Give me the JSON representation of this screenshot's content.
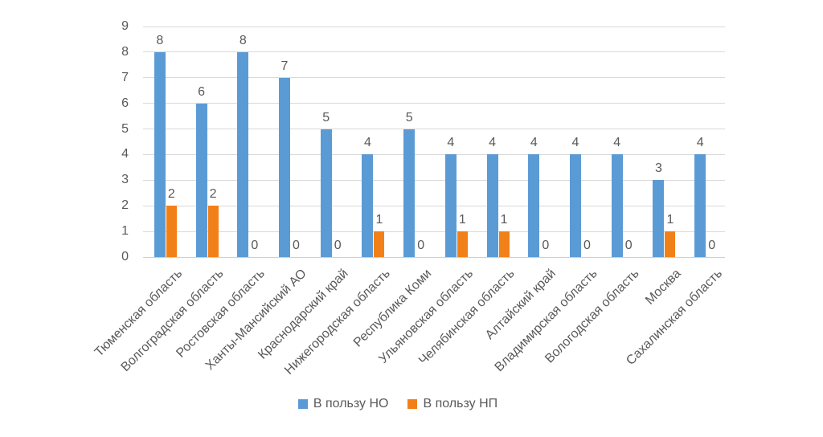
{
  "chart_data": {
    "type": "bar",
    "title": "",
    "xlabel": "",
    "ylabel": "",
    "categories": [
      "Тюменская область",
      "Волгоградская область",
      "Ростовская область",
      "Ханты-Мансийский АО",
      "Краснодарский край",
      "Нижегородская область",
      "Республика Коми",
      "Ульяновская область",
      "Челябинская область",
      "Алтайский край",
      "Владимирская область",
      "Вологодская область",
      "Москва",
      "Сахалинская область"
    ],
    "series": [
      {
        "name": "В пользу НО",
        "color": "#5B9BD5",
        "values": [
          8,
          6,
          8,
          7,
          5,
          4,
          5,
          4,
          4,
          4,
          4,
          4,
          3,
          4
        ]
      },
      {
        "name": "В пользу НП",
        "color": "#F28019",
        "values": [
          2,
          2,
          0,
          0,
          0,
          1,
          0,
          1,
          1,
          0,
          0,
          0,
          1,
          0
        ]
      }
    ],
    "ylim": [
      0,
      9
    ],
    "yticks": [
      0,
      1,
      2,
      3,
      4,
      5,
      6,
      7,
      8,
      9
    ],
    "grid": true,
    "data_labels": true,
    "legend_position": "bottom",
    "colors": {
      "gridline": "#d9d9d9",
      "axis_line": "#d0d0d0",
      "tick_text": "#595959",
      "data_label_text": "#595959"
    }
  }
}
